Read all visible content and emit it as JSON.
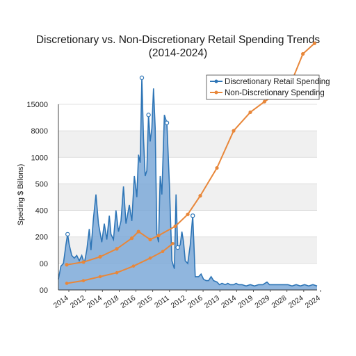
{
  "chart_data": {
    "type": "area",
    "title": "Discretionary vs. Non-Discretionary Retail Spending Trends",
    "subtitle": "(2014-2024)",
    "ylabel": "Speding $ Billons)",
    "xlabel": "",
    "y_tick_labels": [
      "00",
      "00",
      "200",
      "400",
      "500",
      "1000",
      "8000",
      "15000"
    ],
    "x_tick_labels": [
      "2014",
      "2012",
      "2014",
      "2018",
      "2016",
      "2015",
      "2011",
      "2012",
      "2016",
      "2013",
      "2014",
      "2019",
      "2029",
      "2028",
      "2024",
      "2024"
    ],
    "grid": true,
    "legend_position": "top-right",
    "colors": {
      "discretionary": "#2e75b6",
      "discretionary_fill": "#7da9d8",
      "non_discretionary": "#e8873a"
    },
    "series": [
      {
        "name": "Discretionary Retail Spending",
        "type": "area",
        "points": [
          [
            0.0,
            0.4
          ],
          [
            0.3,
            0.9
          ],
          [
            0.6,
            1.0
          ],
          [
            0.9,
            1.7
          ],
          [
            1.1,
            2.1
          ],
          [
            1.3,
            1.7
          ],
          [
            1.6,
            1.3
          ],
          [
            1.9,
            1.2
          ],
          [
            2.2,
            1.3
          ],
          [
            2.5,
            1.1
          ],
          [
            2.8,
            1.3
          ],
          [
            3.1,
            1.0
          ],
          [
            3.4,
            1.5
          ],
          [
            3.7,
            2.3
          ],
          [
            3.9,
            1.5
          ],
          [
            4.2,
            2.7
          ],
          [
            4.5,
            3.6
          ],
          [
            4.8,
            2.5
          ],
          [
            5.2,
            1.8
          ],
          [
            5.5,
            2.5
          ],
          [
            5.8,
            1.9
          ],
          [
            6.1,
            2.8
          ],
          [
            6.3,
            2.1
          ],
          [
            6.6,
            1.9
          ],
          [
            6.9,
            3.0
          ],
          [
            7.2,
            2.2
          ],
          [
            7.5,
            2.6
          ],
          [
            7.8,
            3.9
          ],
          [
            8.1,
            2.5
          ],
          [
            8.5,
            3.2
          ],
          [
            8.8,
            2.6
          ],
          [
            9.1,
            4.3
          ],
          [
            9.4,
            3.5
          ],
          [
            9.6,
            5.1
          ],
          [
            9.8,
            4.8
          ],
          [
            10.0,
            8.0
          ],
          [
            10.2,
            5.7
          ],
          [
            10.4,
            4.3
          ],
          [
            10.6,
            4.5
          ],
          [
            10.8,
            6.6
          ],
          [
            11.0,
            5.6
          ],
          [
            11.2,
            6.1
          ],
          [
            11.4,
            7.6
          ],
          [
            11.6,
            6.1
          ],
          [
            11.8,
            2.1
          ],
          [
            12.0,
            1.8
          ],
          [
            12.2,
            4.3
          ],
          [
            12.4,
            3.6
          ],
          [
            12.7,
            6.6
          ],
          [
            13.0,
            6.3
          ],
          [
            13.3,
            4.0
          ],
          [
            13.6,
            1.1
          ],
          [
            13.9,
            0.8
          ],
          [
            14.1,
            3.6
          ],
          [
            14.3,
            1.6
          ],
          [
            14.6,
            1.7
          ],
          [
            14.8,
            2.2
          ],
          [
            15.0,
            1.8
          ],
          [
            15.2,
            1.1
          ],
          [
            15.5,
            1.0
          ],
          [
            15.8,
            1.7
          ],
          [
            16.1,
            2.8
          ],
          [
            16.4,
            0.5
          ],
          [
            16.8,
            0.5
          ],
          [
            17.1,
            0.6
          ],
          [
            17.4,
            0.4
          ],
          [
            17.7,
            0.35
          ],
          [
            18.0,
            0.35
          ],
          [
            18.3,
            0.5
          ],
          [
            18.6,
            0.35
          ],
          [
            19.0,
            0.3
          ],
          [
            19.3,
            0.2
          ],
          [
            19.6,
            0.25
          ],
          [
            20.0,
            0.2
          ],
          [
            20.3,
            0.25
          ],
          [
            20.6,
            0.2
          ],
          [
            21.0,
            0.2
          ],
          [
            21.3,
            0.25
          ],
          [
            21.6,
            0.2
          ],
          [
            22.0,
            0.2
          ],
          [
            22.5,
            0.15
          ],
          [
            23.0,
            0.2
          ],
          [
            23.5,
            0.15
          ],
          [
            24.0,
            0.2
          ],
          [
            24.5,
            0.2
          ],
          [
            25.0,
            0.3
          ],
          [
            25.3,
            0.2
          ],
          [
            25.6,
            0.2
          ],
          [
            26.0,
            0.2
          ],
          [
            26.5,
            0.2
          ],
          [
            27.0,
            0.2
          ],
          [
            27.5,
            0.2
          ],
          [
            28.0,
            0.15
          ],
          [
            28.5,
            0.2
          ],
          [
            29.0,
            0.15
          ],
          [
            29.5,
            0.2
          ],
          [
            30.0,
            0.15
          ],
          [
            30.5,
            0.2
          ],
          [
            31.0,
            0.15
          ]
        ],
        "markers": [
          [
            1.1,
            2.1
          ],
          [
            10.0,
            8.0
          ],
          [
            10.8,
            6.6
          ],
          [
            13.0,
            6.3
          ],
          [
            14.3,
            1.6
          ],
          [
            16.1,
            2.8
          ]
        ]
      },
      {
        "name": "Non-Discretionary Spending",
        "type": "line",
        "points": [
          [
            1.0,
            0.95
          ],
          [
            3.0,
            1.05
          ],
          [
            5.0,
            1.25
          ],
          [
            7.0,
            1.55
          ],
          [
            8.8,
            1.95
          ],
          [
            9.6,
            2.2
          ],
          [
            11.0,
            1.9
          ],
          [
            12.0,
            2.05
          ],
          [
            14.0,
            2.4
          ],
          [
            15.5,
            2.85
          ],
          [
            17.0,
            3.55
          ],
          [
            19.0,
            4.6
          ],
          [
            21.0,
            6.0
          ],
          [
            23.0,
            6.7
          ],
          [
            24.7,
            7.1
          ],
          [
            26.4,
            7.45
          ],
          [
            28.0,
            7.9
          ],
          [
            29.3,
            8.9
          ],
          [
            30.7,
            9.3
          ]
        ],
        "secondary_path": [
          [
            1.0,
            0.25
          ],
          [
            3.0,
            0.35
          ],
          [
            5.0,
            0.5
          ],
          [
            7.0,
            0.65
          ],
          [
            9.0,
            0.9
          ],
          [
            11.0,
            1.2
          ],
          [
            12.5,
            1.45
          ],
          [
            13.7,
            1.75
          ]
        ],
        "markers_on": true
      }
    ]
  }
}
